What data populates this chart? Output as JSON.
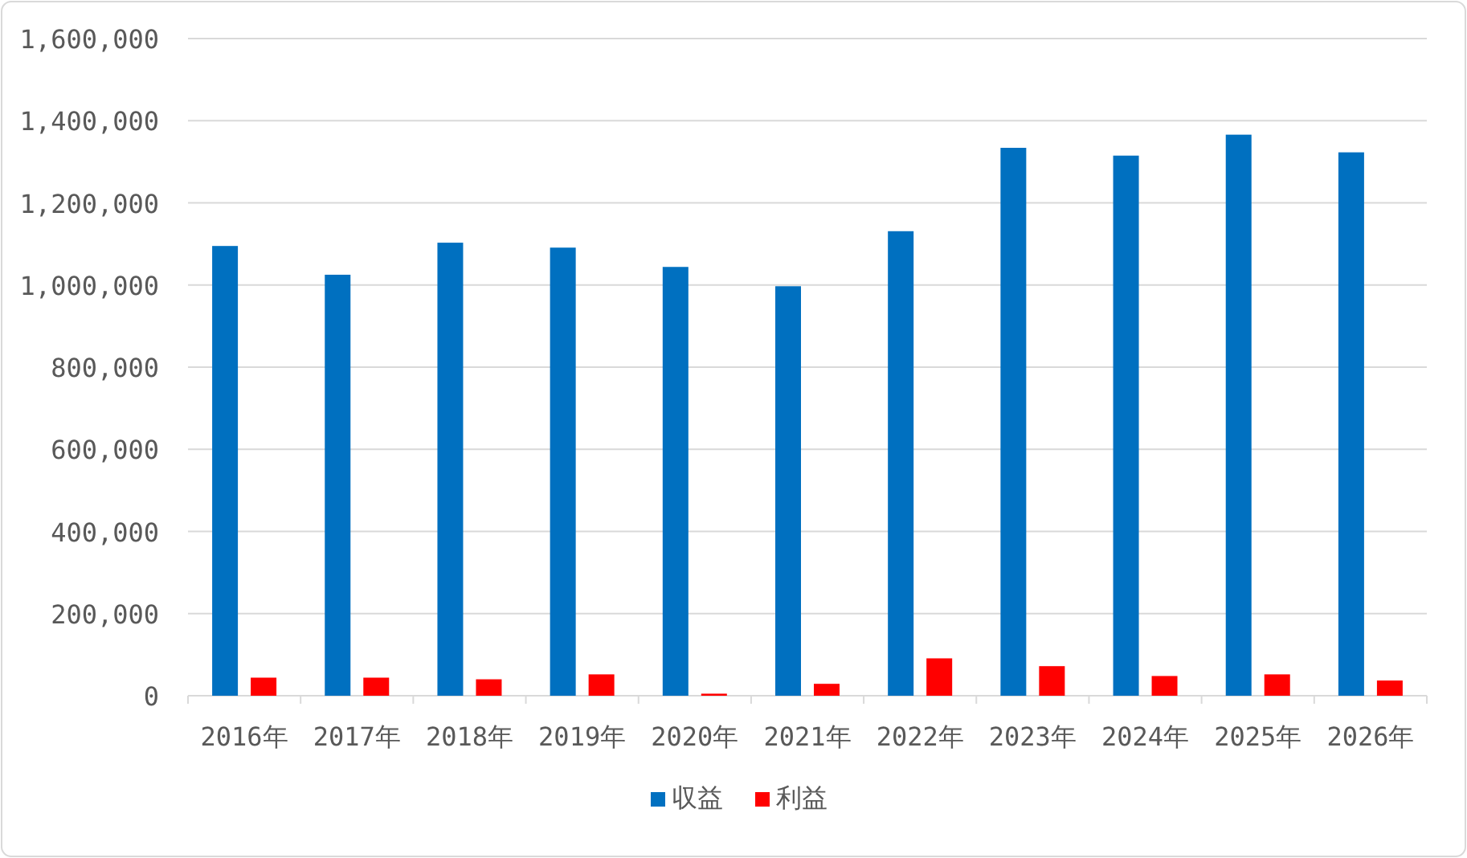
{
  "chart_data": {
    "type": "bar",
    "categories": [
      "2016年",
      "2017年",
      "2018年",
      "2019年",
      "2020年",
      "2021年",
      "2022年",
      "2023年",
      "2024年",
      "2025年",
      "2026年"
    ],
    "series": [
      {
        "name": "収益",
        "color": "#0070c0",
        "values": [
          1095000,
          1025000,
          1103000,
          1091000,
          1044000,
          997000,
          1131000,
          1334000,
          1315000,
          1366000,
          1323000
        ]
      },
      {
        "name": "利益",
        "color": "#ff0000",
        "values": [
          44000,
          44000,
          40000,
          52000,
          5000,
          29000,
          91000,
          72000,
          48000,
          52000,
          37000
        ]
      }
    ],
    "ylim": [
      0,
      1600000
    ],
    "yticks": [
      {
        "value": 0,
        "label": "0"
      },
      {
        "value": 200000,
        "label": "200,000"
      },
      {
        "value": 400000,
        "label": "400,000"
      },
      {
        "value": 600000,
        "label": "600,000"
      },
      {
        "value": 800000,
        "label": "800,000"
      },
      {
        "value": 1000000,
        "label": "1,000,000"
      },
      {
        "value": 1200000,
        "label": "1,200,000"
      },
      {
        "value": 1400000,
        "label": "1,400,000"
      },
      {
        "value": 1600000,
        "label": "1,600,000"
      }
    ],
    "grid": "y",
    "legend": "bottom"
  }
}
